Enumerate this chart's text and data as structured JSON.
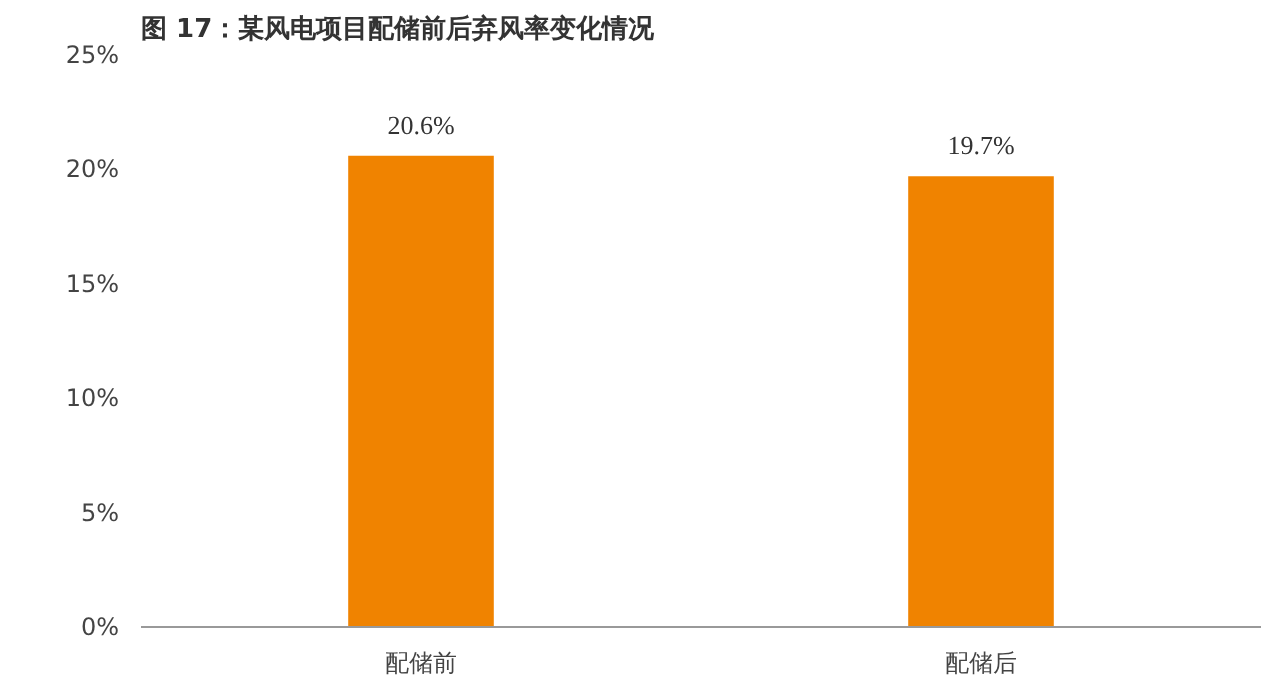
{
  "chart_data": {
    "type": "bar",
    "title": "图 17：某风电项目配储前后弃风率变化情况",
    "categories": [
      "配储前",
      "配储后"
    ],
    "values": [
      20.6,
      19.7
    ],
    "value_labels": [
      "20.6%",
      "19.7%"
    ],
    "color": "#f08300",
    "ylim": [
      0,
      25
    ],
    "yticks": [
      {
        "value": 0,
        "label": "0%"
      },
      {
        "value": 5,
        "label": "5%"
      },
      {
        "value": 10,
        "label": "10%"
      },
      {
        "value": 15,
        "label": "15%"
      },
      {
        "value": 20,
        "label": "20%"
      },
      {
        "value": 25,
        "label": "25%"
      }
    ],
    "grid": false
  }
}
